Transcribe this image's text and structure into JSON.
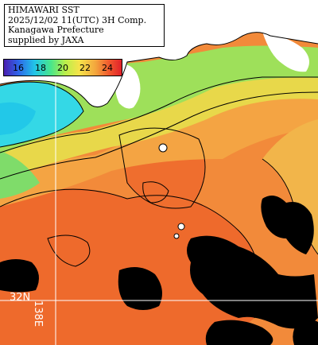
{
  "title": {
    "lines": [
      "HIMAWARI SST",
      "2025/12/02 11(UTC) 3H Comp.",
      "Kanagawa Prefecture",
      "supplied by JAXA"
    ]
  },
  "legend": {
    "ticks": [
      "16",
      "18",
      "20",
      "22",
      "24"
    ],
    "gradient_colors": [
      "#4a1fb0",
      "#2f63e8",
      "#21c4e8",
      "#49e68a",
      "#b9ee4a",
      "#f6e34a",
      "#f3a53d",
      "#f0552d",
      "#e0202a"
    ]
  },
  "grid_labels": {
    "latitude": "32N",
    "longitude": "138E"
  },
  "colors": {
    "land": "#ffffff",
    "cloud": "#000000",
    "sst_warm": "#f07a30",
    "sst_mid": "#f5a844",
    "sst_cool": "#9ee860",
    "sst_cold": "#2ee0e8"
  }
}
